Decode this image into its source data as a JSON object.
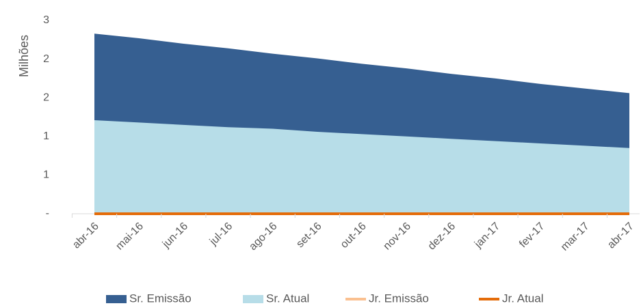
{
  "chart_data": {
    "type": "area",
    "y_label": "Milhões",
    "categories": [
      "abr-16",
      "mai-16",
      "jun-16",
      "jul-16",
      "ago-16",
      "set-16",
      "out-16",
      "nov-16",
      "dez-16",
      "jan-17",
      "fev-17",
      "mar-17",
      "abr-17"
    ],
    "series": [
      {
        "name": "Sr. Emissão",
        "color": "#365f91",
        "kind": "area",
        "values": [
          2.33,
          2.27,
          2.2,
          2.14,
          2.07,
          2.01,
          1.94,
          1.88,
          1.81,
          1.75,
          1.68,
          1.62,
          1.56
        ]
      },
      {
        "name": "Sr. Atual",
        "color": "#b7dde8",
        "kind": "area",
        "values": [
          1.21,
          1.18,
          1.15,
          1.12,
          1.1,
          1.06,
          1.03,
          1.0,
          0.97,
          0.94,
          0.91,
          0.88,
          0.85
        ]
      },
      {
        "name": "Jr. Emissão",
        "color": "#fac090",
        "kind": "line",
        "values": [
          0,
          0,
          0,
          0,
          0,
          0,
          0,
          0,
          0,
          0,
          0,
          0,
          0
        ]
      },
      {
        "name": "Jr. Atual",
        "color": "#e46c0a",
        "kind": "line",
        "values": [
          0,
          0,
          0,
          0,
          0,
          0,
          0,
          0,
          0,
          0,
          0,
          0,
          0
        ]
      }
    ],
    "ylim": [
      0,
      2.5
    ],
    "yticks": [
      {
        "value": 0,
        "label": "-"
      },
      {
        "value": 0.5,
        "label": "1"
      },
      {
        "value": 1,
        "label": "1"
      },
      {
        "value": 1.5,
        "label": "2"
      },
      {
        "value": 2,
        "label": "2"
      },
      {
        "value": 2.5,
        "label": "3"
      }
    ],
    "legend": "bottom"
  }
}
